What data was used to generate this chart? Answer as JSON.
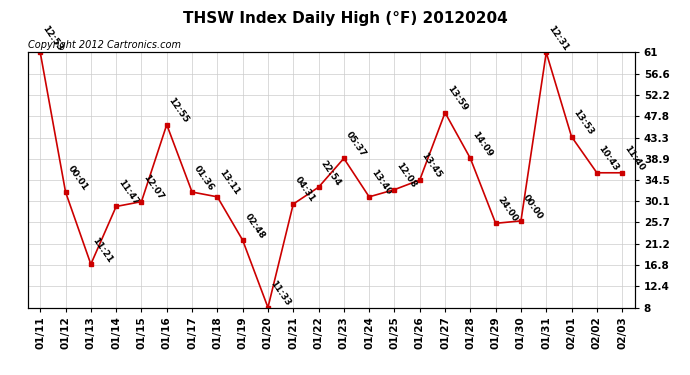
{
  "title": "THSW Index Daily High (°F) 20120204",
  "copyright": "Copyright 2012 Cartronics.com",
  "dates": [
    "01/11",
    "01/12",
    "01/13",
    "01/14",
    "01/15",
    "01/16",
    "01/17",
    "01/18",
    "01/19",
    "01/20",
    "01/21",
    "01/22",
    "01/23",
    "01/24",
    "01/25",
    "01/26",
    "01/27",
    "01/28",
    "01/29",
    "01/30",
    "01/31",
    "02/01",
    "02/02",
    "02/03"
  ],
  "values": [
    61.0,
    32.0,
    17.0,
    29.0,
    30.0,
    46.0,
    32.0,
    31.0,
    22.0,
    8.0,
    29.5,
    33.0,
    39.0,
    31.0,
    32.5,
    34.5,
    48.5,
    39.0,
    25.5,
    26.0,
    61.0,
    43.5,
    36.0,
    36.0
  ],
  "labels": [
    "12:53",
    "00:01",
    "11:21",
    "11:47",
    "12:07",
    "12:55",
    "01:36",
    "13:11",
    "02:48",
    "11:33",
    "04:31",
    "22:54",
    "05:37",
    "13:40",
    "12:08",
    "13:45",
    "13:59",
    "14:09",
    "24:00",
    "00:00",
    "12:31",
    "13:53",
    "10:43",
    "11:40"
  ],
  "ylim": [
    8.0,
    61.0
  ],
  "yticks": [
    8.0,
    12.4,
    16.8,
    21.2,
    25.7,
    30.1,
    34.5,
    38.9,
    43.3,
    47.8,
    52.2,
    56.6,
    61.0
  ],
  "line_color": "#cc0000",
  "marker_color": "#cc0000",
  "bg_color": "#ffffff",
  "grid_color": "#cccccc",
  "title_fontsize": 11,
  "label_fontsize": 6.5,
  "copyright_fontsize": 7,
  "tick_fontsize": 7.5
}
